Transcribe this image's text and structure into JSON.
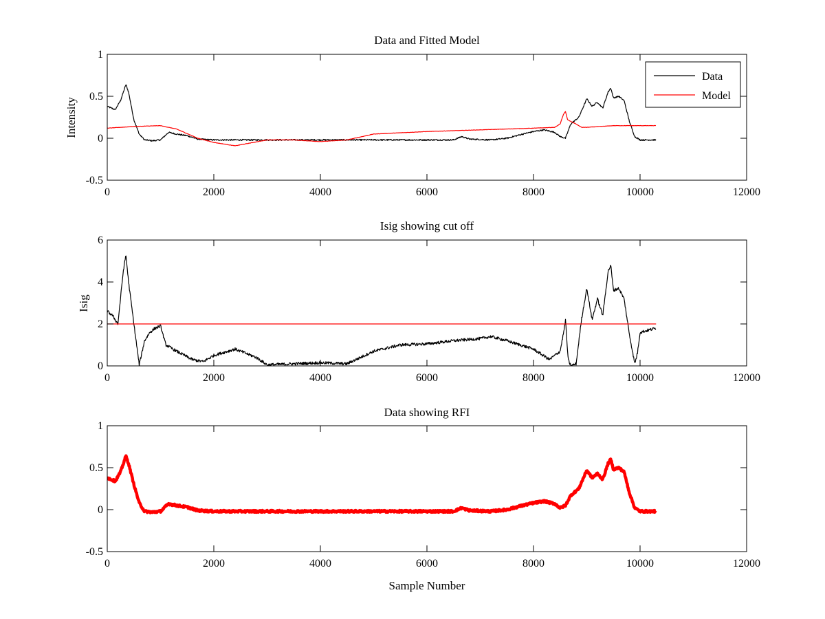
{
  "chart_data": [
    {
      "type": "line",
      "title": "Data and Fitted Model",
      "xlabel": "",
      "ylabel": "Intensity",
      "xlim": [
        0,
        12000
      ],
      "ylim": [
        -0.5,
        1
      ],
      "xticks": [
        0,
        2000,
        4000,
        6000,
        8000,
        10000,
        12000
      ],
      "xtick_labels": [
        "0",
        "2000",
        "4000",
        "6000",
        "8000",
        "10000",
        "12000"
      ],
      "yticks": [
        -0.5,
        0,
        0.5,
        1
      ],
      "ytick_labels": [
        "-0.5",
        "0",
        "0.5",
        "1"
      ],
      "legend": {
        "position": "top-right",
        "entries": [
          "Data",
          "Model"
        ]
      },
      "series": [
        {
          "name": "Data",
          "color": "#000000",
          "noise": 0.008,
          "x": [
            0,
            150,
            250,
            350,
            400,
            500,
            600,
            700,
            850,
            1000,
            1150,
            1300,
            1500,
            1700,
            2000,
            3000,
            4000,
            5000,
            6000,
            6500,
            6650,
            6800,
            7200,
            7500,
            7800,
            8000,
            8200,
            8400,
            8500,
            8600,
            8700,
            8850,
            9000,
            9100,
            9200,
            9300,
            9400,
            9450,
            9500,
            9600,
            9700,
            9800,
            9900,
            10000,
            10300
          ],
          "y": [
            0.38,
            0.34,
            0.45,
            0.64,
            0.55,
            0.22,
            0.05,
            -0.02,
            -0.03,
            -0.02,
            0.07,
            0.05,
            0.03,
            -0.01,
            -0.02,
            -0.02,
            -0.02,
            -0.02,
            -0.02,
            -0.02,
            0.02,
            -0.01,
            -0.02,
            0.0,
            0.05,
            0.08,
            0.1,
            0.07,
            0.02,
            0.0,
            0.17,
            0.25,
            0.47,
            0.38,
            0.43,
            0.36,
            0.55,
            0.6,
            0.48,
            0.5,
            0.45,
            0.2,
            0.02,
            -0.02,
            -0.02
          ]
        },
        {
          "name": "Model",
          "color": "#ff0000",
          "noise": 0.002,
          "x": [
            0,
            500,
            1000,
            1300,
            1700,
            2000,
            2400,
            3000,
            3500,
            4000,
            4500,
            5000,
            6000,
            7000,
            8000,
            8400,
            8500,
            8560,
            8600,
            8640,
            8700,
            8800,
            8900,
            9000,
            9500,
            10300
          ],
          "y": [
            0.12,
            0.14,
            0.15,
            0.11,
            0.0,
            -0.05,
            -0.09,
            -0.02,
            -0.02,
            -0.04,
            -0.02,
            0.05,
            0.08,
            0.1,
            0.12,
            0.13,
            0.17,
            0.28,
            0.32,
            0.22,
            0.2,
            0.17,
            0.13,
            0.13,
            0.15,
            0.15
          ]
        }
      ]
    },
    {
      "type": "line",
      "title": "Isig showing cut off",
      "xlabel": "",
      "ylabel": "Isig",
      "xlim": [
        0,
        12000
      ],
      "ylim": [
        0,
        6
      ],
      "xticks": [
        0,
        2000,
        4000,
        6000,
        8000,
        10000,
        12000
      ],
      "xtick_labels": [
        "0",
        "2000",
        "4000",
        "6000",
        "8000",
        "10000",
        "12000"
      ],
      "yticks": [
        0,
        2,
        4,
        6
      ],
      "ytick_labels": [
        "0",
        "2",
        "4",
        "6"
      ],
      "series": [
        {
          "name": "Isig",
          "color": "#000000",
          "noise": 0.07,
          "x": [
            0,
            100,
            200,
            300,
            350,
            400,
            500,
            600,
            700,
            800,
            900,
            1000,
            1100,
            1300,
            1600,
            1800,
            2000,
            2400,
            2800,
            3000,
            3500,
            4000,
            4500,
            5000,
            5500,
            6000,
            6500,
            7000,
            7200,
            7500,
            8000,
            8300,
            8500,
            8580,
            8600,
            8650,
            8700,
            8800,
            8900,
            9000,
            9100,
            9200,
            9300,
            9400,
            9450,
            9500,
            9600,
            9700,
            9800,
            9850,
            9900,
            9950,
            10000,
            10300
          ],
          "y": [
            2.6,
            2.4,
            2.0,
            4.5,
            5.3,
            4.0,
            2.0,
            0.05,
            1.2,
            1.6,
            1.8,
            1.9,
            1.0,
            0.7,
            0.3,
            0.2,
            0.5,
            0.8,
            0.4,
            0.05,
            0.1,
            0.15,
            0.1,
            0.7,
            1.0,
            1.05,
            1.2,
            1.3,
            1.4,
            1.2,
            0.8,
            0.3,
            0.7,
            1.8,
            2.2,
            0.3,
            0.0,
            0.1,
            2.2,
            3.7,
            2.2,
            3.2,
            2.4,
            4.5,
            4.8,
            3.6,
            3.7,
            3.2,
            1.5,
            0.8,
            0.1,
            0.6,
            1.6,
            1.8
          ]
        },
        {
          "name": "Cut off",
          "color": "#ff0000",
          "noise": 0,
          "x": [
            0,
            10300
          ],
          "y": [
            2,
            2
          ]
        }
      ]
    },
    {
      "type": "line",
      "title": "Data showing RFI",
      "xlabel": "Sample Number",
      "ylabel": "",
      "xlim": [
        0,
        12000
      ],
      "ylim": [
        -0.5,
        1
      ],
      "xticks": [
        0,
        2000,
        4000,
        6000,
        8000,
        10000,
        12000
      ],
      "xtick_labels": [
        "0",
        "2000",
        "4000",
        "6000",
        "8000",
        "10000",
        "12000"
      ],
      "yticks": [
        -0.5,
        0,
        0.5,
        1
      ],
      "ytick_labels": [
        "-0.5",
        "0",
        "0.5",
        "1"
      ],
      "series": [
        {
          "name": "RFI",
          "color": "#ff0000",
          "noise": 0.012,
          "x": [
            0,
            150,
            250,
            350,
            400,
            500,
            600,
            700,
            850,
            1000,
            1150,
            1300,
            1500,
            1700,
            2000,
            3000,
            4000,
            5000,
            6000,
            6500,
            6650,
            6800,
            7200,
            7500,
            7800,
            8000,
            8200,
            8400,
            8500,
            8600,
            8700,
            8850,
            9000,
            9100,
            9200,
            9300,
            9400,
            9450,
            9500,
            9600,
            9700,
            9800,
            9900,
            10000,
            10300
          ],
          "y": [
            0.38,
            0.34,
            0.45,
            0.64,
            0.55,
            0.3,
            0.08,
            -0.02,
            -0.03,
            -0.02,
            0.07,
            0.05,
            0.03,
            -0.01,
            -0.02,
            -0.02,
            -0.02,
            -0.02,
            -0.02,
            -0.02,
            0.02,
            -0.01,
            -0.02,
            0.0,
            0.05,
            0.08,
            0.1,
            0.07,
            0.02,
            0.05,
            0.17,
            0.25,
            0.47,
            0.38,
            0.43,
            0.36,
            0.55,
            0.6,
            0.48,
            0.5,
            0.45,
            0.2,
            0.02,
            -0.02,
            -0.02
          ]
        }
      ]
    }
  ]
}
